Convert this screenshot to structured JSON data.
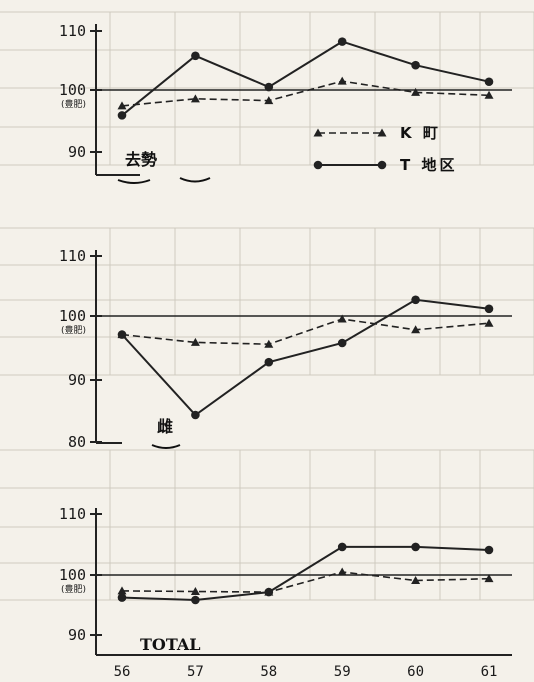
{
  "chart_data": [
    {
      "type": "line",
      "title": "去勢",
      "x": [
        "56",
        "57",
        "58",
        "59",
        "60",
        "61"
      ],
      "yticks": [
        "110",
        "100",
        "90"
      ],
      "ytick_sub": "(豊肥)",
      "reference_line": 100,
      "ylim": [
        88,
        111
      ],
      "series": [
        {
          "name": "K 町",
          "marker": "triangle",
          "style": "dashed",
          "values": [
            97.3,
            98.5,
            98.2,
            101.5,
            99.6,
            99.1
          ]
        },
        {
          "name": "T 地区",
          "marker": "circle",
          "style": "solid",
          "values": [
            95.7,
            105.8,
            100.5,
            108.2,
            104.2,
            101.4
          ]
        }
      ],
      "legend": "right"
    },
    {
      "type": "line",
      "title": "雌",
      "x": [
        "56",
        "57",
        "58",
        "59",
        "60",
        "61"
      ],
      "yticks": [
        "110",
        "100",
        "90",
        "80"
      ],
      "ytick_sub": "(豊肥)",
      "reference_line": 100,
      "ylim": [
        80,
        111
      ],
      "series": [
        {
          "name": "K 町",
          "marker": "triangle",
          "style": "dashed",
          "values": [
            96.9,
            95.6,
            95.3,
            99.5,
            97.7,
            98.8
          ]
        },
        {
          "name": "T 地区",
          "marker": "circle",
          "style": "solid",
          "values": [
            96.9,
            83.5,
            92.3,
            95.5,
            102.7,
            101.2
          ]
        }
      ]
    },
    {
      "type": "line",
      "title": "TOTAL",
      "x": [
        "56",
        "57",
        "58",
        "59",
        "60",
        "61"
      ],
      "yticks": [
        "110",
        "100",
        "90"
      ],
      "ytick_sub": "(豊肥)",
      "reference_line": 100,
      "ylim": [
        88,
        111
      ],
      "series": [
        {
          "name": "K 町",
          "marker": "triangle",
          "style": "dashed",
          "values": [
            97.4,
            97.3,
            97.2,
            100.5,
            99.1,
            99.4
          ]
        },
        {
          "name": "T 地区",
          "marker": "circle",
          "style": "solid",
          "values": [
            96.3,
            95.9,
            97.2,
            104.6,
            104.6,
            104.1
          ]
        }
      ]
    }
  ]
}
